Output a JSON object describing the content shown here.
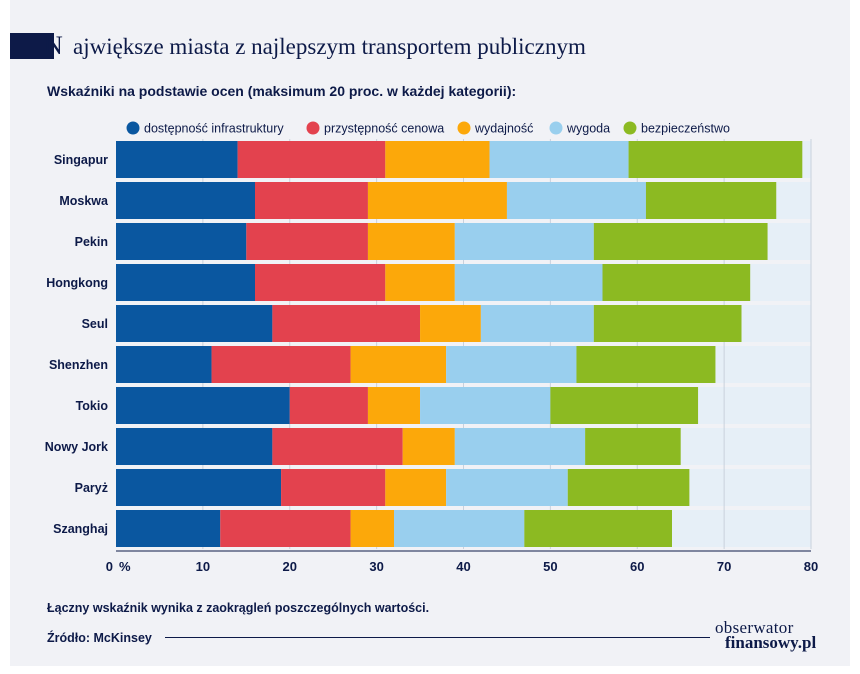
{
  "header": {
    "title_first_letter": "N",
    "title_rest": "ajwiększe miasta z najlepszym transportem publicznym",
    "subtitle": "Wskaźniki na podstawie ocen (maksimum 20 proc. w każdej kategorii):"
  },
  "footer": {
    "note": "Łączny wskaźnik wynika z zaokrągleń poszczególnych wartości.",
    "source": "Źródło: McKinsey",
    "logo_line1": "obserwator",
    "logo_line2": "finansowy.pl"
  },
  "colors": {
    "brand": "#0d1a48",
    "track": "#e6eff7",
    "grid": "#c9d1dc"
  },
  "chart_data": {
    "type": "bar",
    "orientation": "horizontal",
    "stacked": true,
    "categories": [
      "Singapur",
      "Moskwa",
      "Pekin",
      "Hongkong",
      "Seul",
      "Shenzhen",
      "Tokio",
      "Nowy Jork",
      "Paryż",
      "Szanghaj"
    ],
    "series": [
      {
        "name": "dostępność infrastruktury",
        "color": "#0a57a0",
        "values": [
          14,
          16,
          15,
          16,
          18,
          11,
          20,
          18,
          19,
          12
        ]
      },
      {
        "name": "przystępność cenowa",
        "color": "#e3424e",
        "values": [
          17,
          13,
          14,
          15,
          17,
          16,
          9,
          15,
          12,
          15
        ]
      },
      {
        "name": "wydajność",
        "color": "#fca80a",
        "values": [
          12,
          16,
          10,
          8,
          7,
          11,
          6,
          6,
          7,
          5
        ]
      },
      {
        "name": "wygoda",
        "color": "#99cfee",
        "values": [
          16,
          16,
          16,
          17,
          13,
          15,
          15,
          15,
          14,
          15
        ]
      },
      {
        "name": "bezpieczeństwo",
        "color": "#8cba22",
        "values": [
          20,
          15,
          20,
          17,
          17,
          16,
          17,
          11,
          14,
          17
        ]
      }
    ],
    "xlim": [
      0,
      80
    ],
    "x_ticks": [
      "0",
      "10",
      "20",
      "30",
      "40",
      "50",
      "60",
      "70",
      "80"
    ],
    "x_unit": "%",
    "grid": true,
    "legend_position": "top"
  }
}
